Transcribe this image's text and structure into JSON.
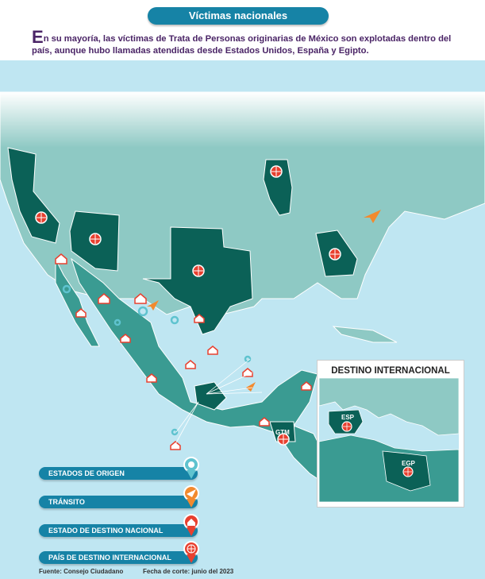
{
  "header": {
    "title": "Víctimas nacionales",
    "intro_dropcap": "E",
    "intro_text": "n su mayoría, las víctimas de Trata de Personas originarias de México son explotadas dentro del país, aunque hubo llamadas atendidas desde Estados Unidos, España y Egipto."
  },
  "colors": {
    "title_pill": "#1683a6",
    "land_light": "#8ec9c4",
    "land_mid": "#3a9b92",
    "land_dark": "#0b6157",
    "water": "#bfe6f2",
    "icon_red": "#e8402f",
    "icon_orange": "#f28a2e",
    "icon_teal": "#5fc3cf",
    "intro_text": "#4a2466"
  },
  "map_labels": {
    "gtm": "GTM"
  },
  "inset": {
    "title": "DESTINO INTERNACIONAL",
    "esp": "ESP",
    "egp": "EGP"
  },
  "legend": [
    {
      "label": "ESTADOS DE ORIGEN",
      "icon": "origin-pin-icon",
      "color": "#5fc3cf"
    },
    {
      "label": "TRÁNSITO",
      "icon": "transit-plane-icon",
      "color": "#f28a2e"
    },
    {
      "label": "ESTADO DE DESTINO NACIONAL",
      "icon": "national-house-icon",
      "color": "#e8402f"
    },
    {
      "label": "PAÍS DE DESTINO INTERNACIONAL",
      "icon": "international-globe-icon",
      "color": "#e8402f"
    }
  ],
  "footer": {
    "source": "Fuente: Consejo Ciudadano",
    "cutoff": "Fecha de corte: junio del 2023"
  }
}
